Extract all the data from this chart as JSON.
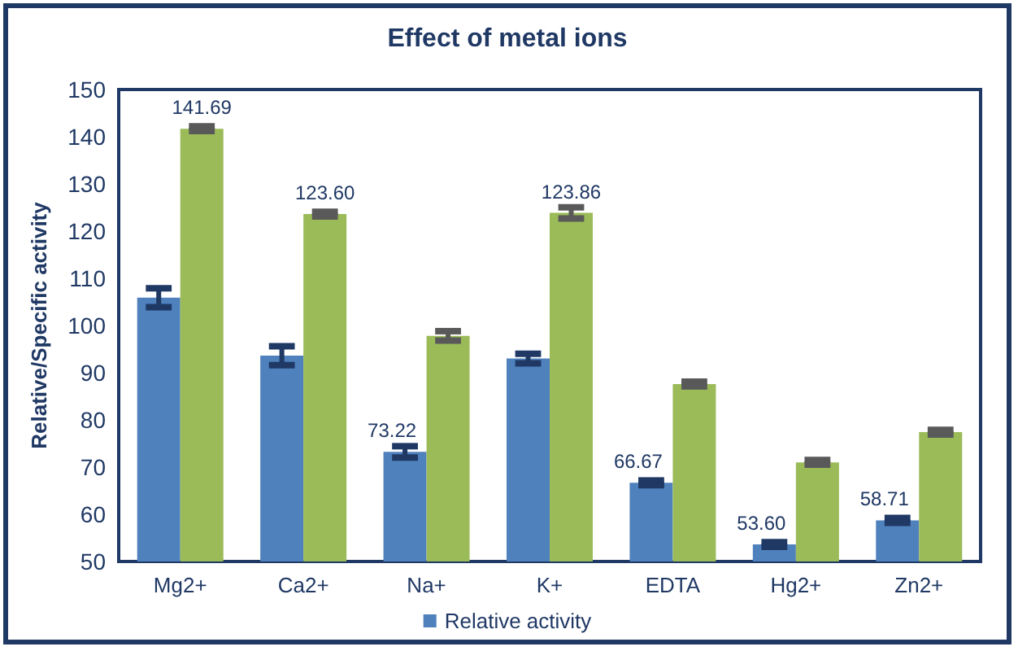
{
  "chart_data": {
    "type": "bar",
    "title": "Effect of metal ions",
    "ylabel": "Relative/Specific activity",
    "categories": [
      "Mg2+",
      "Ca2+",
      "Na+",
      "K+",
      "EDTA",
      "Hg2+",
      "Zn2+"
    ],
    "series": [
      {
        "name": "Relative activity",
        "color": "#4f81bd",
        "values": [
          105.9,
          93.6,
          73.22,
          93.0,
          66.67,
          53.6,
          58.71
        ],
        "errors": [
          2,
          2,
          1.2,
          1,
          0.5,
          0.5,
          0.5
        ],
        "value_labels": [
          null,
          null,
          "73.22",
          null,
          "66.67",
          "53.60",
          "58.71"
        ]
      },
      {
        "color": "#9bbb59",
        "values": [
          141.69,
          123.6,
          97.8,
          123.86,
          87.6,
          71.0,
          77.4
        ],
        "errors": [
          0.5,
          0.5,
          1,
          1.2,
          0.5,
          0.5,
          0.5
        ],
        "value_labels": [
          "141.69",
          "123.60",
          null,
          "123.86",
          null,
          null,
          null
        ]
      }
    ],
    "ylim": [
      50,
      150
    ],
    "yticks": [
      50,
      60,
      70,
      80,
      90,
      100,
      110,
      120,
      130,
      140,
      150
    ],
    "grid": false,
    "legend": "bottom"
  }
}
